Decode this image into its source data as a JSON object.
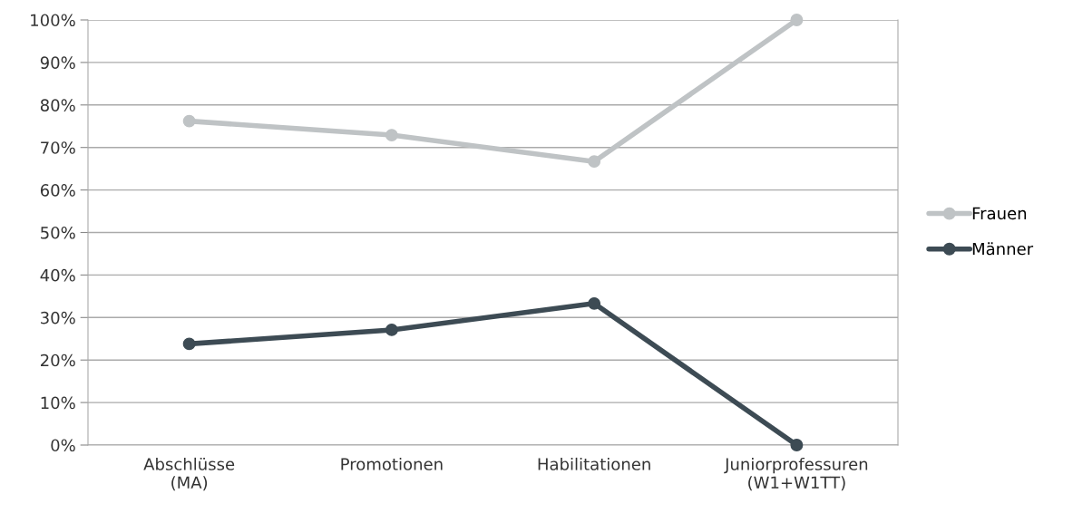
{
  "chart_data": {
    "type": "line",
    "categories": [
      "Abschlüsse\n(MA)",
      "Promotionen",
      "Habilitationen",
      "Juniorprofessuren\n(W1+W1TT)"
    ],
    "series": [
      {
        "name": "Frauen",
        "color": "#bfc3c5",
        "values": [
          76.2,
          72.9,
          66.7,
          100
        ]
      },
      {
        "name": "Männer",
        "color": "#3d4b54",
        "values": [
          23.8,
          27.1,
          33.3,
          0
        ]
      }
    ],
    "ylim": [
      0,
      100
    ],
    "yticks": [
      {
        "value": 0,
        "label": "0%"
      },
      {
        "value": 10,
        "label": "10%"
      },
      {
        "value": 20,
        "label": "20%"
      },
      {
        "value": 30,
        "label": "30%"
      },
      {
        "value": 40,
        "label": "40%"
      },
      {
        "value": 50,
        "label": "50%"
      },
      {
        "value": 60,
        "label": "60%"
      },
      {
        "value": 70,
        "label": "70%"
      },
      {
        "value": 80,
        "label": "80%"
      },
      {
        "value": 90,
        "label": "90%"
      },
      {
        "value": 100,
        "label": "100%"
      }
    ],
    "grid": "y",
    "legend": "right",
    "marker": "circle",
    "line_style": "solid"
  }
}
